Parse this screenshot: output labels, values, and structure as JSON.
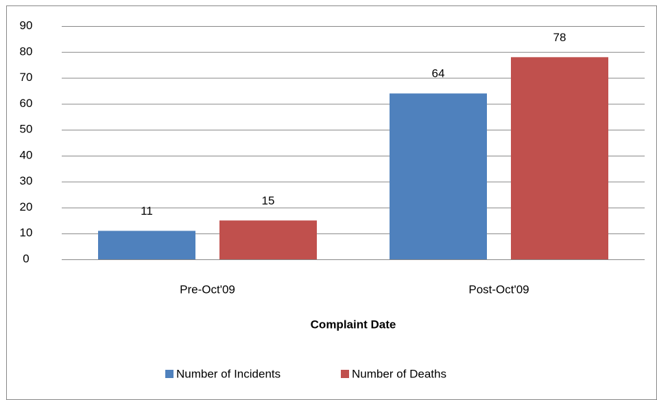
{
  "chart_data": {
    "type": "bar",
    "categories": [
      "Pre-Oct'09",
      "Post-Oct'09"
    ],
    "series": [
      {
        "name": "Number of Incidents",
        "color": "#4f81bd",
        "values": [
          11,
          64
        ]
      },
      {
        "name": "Number of Deaths",
        "color": "#c0504d",
        "values": [
          15,
          78
        ]
      }
    ],
    "x_label": "Complaint Date",
    "ylim": [
      0,
      90
    ],
    "yticks": [
      0,
      10,
      20,
      30,
      40,
      50,
      60,
      70,
      80,
      90
    ],
    "grid": true,
    "legend": "bottom"
  }
}
